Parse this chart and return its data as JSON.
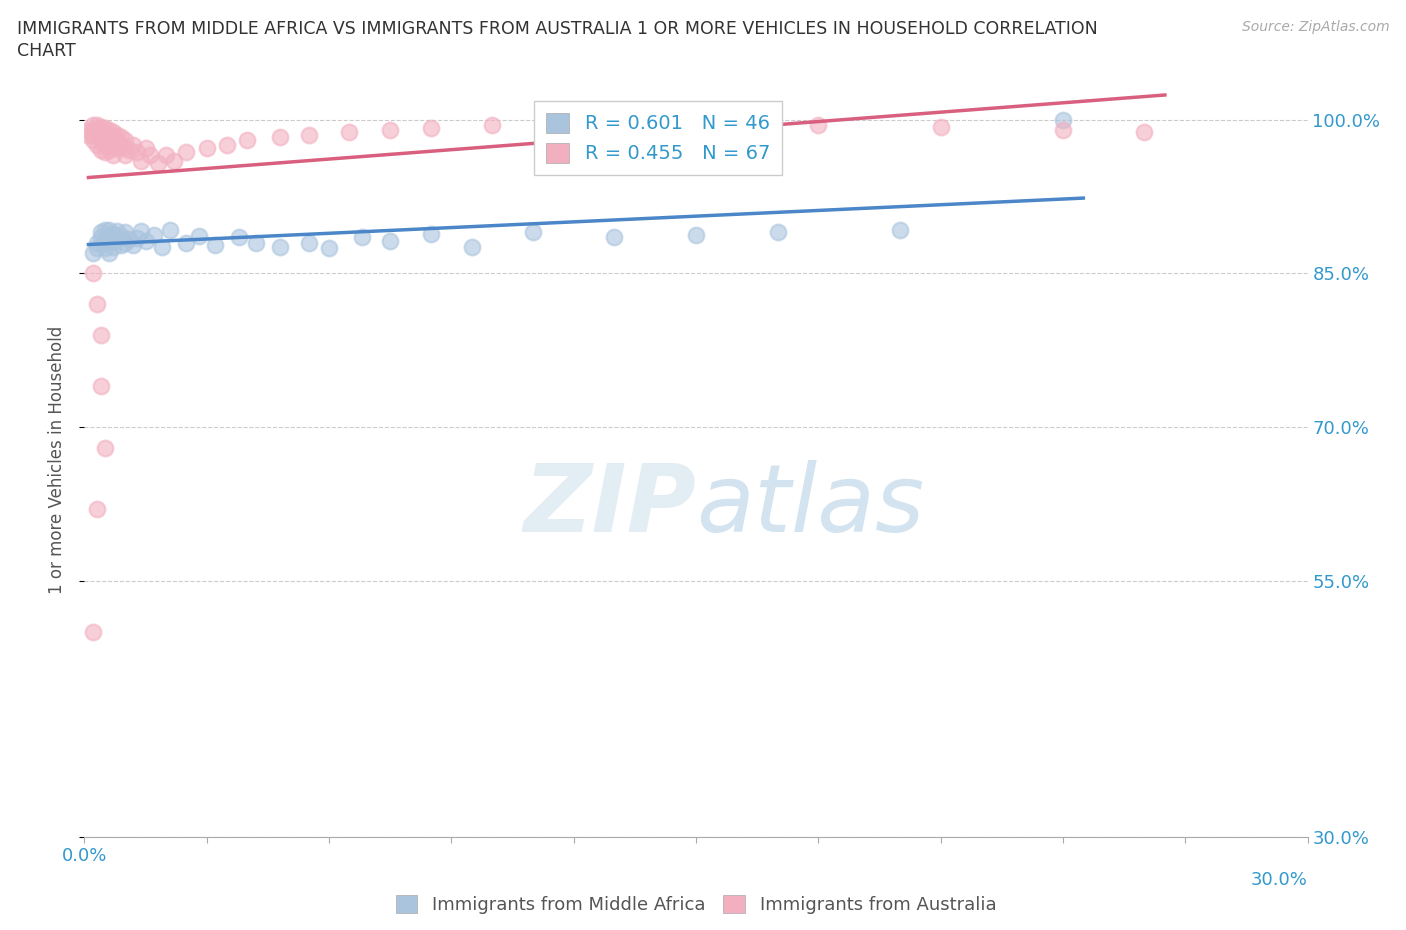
{
  "title_line1": "IMMIGRANTS FROM MIDDLE AFRICA VS IMMIGRANTS FROM AUSTRALIA 1 OR MORE VEHICLES IN HOUSEHOLD CORRELATION",
  "title_line2": "CHART",
  "source_text": "Source: ZipAtlas.com",
  "ylabel": "1 or more Vehicles in Household",
  "watermark_zip": "ZIP",
  "watermark_atlas": "atlas",
  "xlim": [
    0.0,
    0.3
  ],
  "ylim": [
    0.3,
    1.035
  ],
  "yticks": [
    0.3,
    0.55,
    0.7,
    0.85,
    1.0
  ],
  "ytick_labels": [
    "30.0%",
    "55.0%",
    "70.0%",
    "85.0%",
    "100.0%"
  ],
  "xtick_left_label": "0.0%",
  "xtick_right_label": "30.0%",
  "blue_R": 0.601,
  "blue_N": 46,
  "pink_R": 0.455,
  "pink_N": 67,
  "blue_color": "#aac4de",
  "pink_color": "#f2afc0",
  "blue_line_color": "#4a86c8",
  "pink_line_color": "#d95f7f",
  "legend_label_blue": "Immigrants from Middle Africa",
  "legend_label_pink": "Immigrants from Australia",
  "blue_x": [
    0.002,
    0.003,
    0.003,
    0.004,
    0.004,
    0.005,
    0.005,
    0.005,
    0.006,
    0.006,
    0.006,
    0.007,
    0.007,
    0.007,
    0.008,
    0.008,
    0.009,
    0.009,
    0.01,
    0.01,
    0.011,
    0.012,
    0.013,
    0.014,
    0.015,
    0.017,
    0.019,
    0.021,
    0.025,
    0.028,
    0.032,
    0.038,
    0.042,
    0.048,
    0.055,
    0.06,
    0.068,
    0.075,
    0.085,
    0.095,
    0.11,
    0.13,
    0.15,
    0.17,
    0.2,
    0.24
  ],
  "blue_y": [
    0.87,
    0.88,
    0.875,
    0.885,
    0.89,
    0.88,
    0.892,
    0.875,
    0.885,
    0.892,
    0.87,
    0.882,
    0.888,
    0.876,
    0.883,
    0.891,
    0.878,
    0.886,
    0.88,
    0.89,
    0.883,
    0.878,
    0.884,
    0.891,
    0.882,
    0.887,
    0.876,
    0.892,
    0.88,
    0.886,
    0.878,
    0.885,
    0.88,
    0.876,
    0.88,
    0.875,
    0.885,
    0.882,
    0.888,
    0.876,
    0.89,
    0.885,
    0.887,
    0.89,
    0.892,
    1.0
  ],
  "pink_x": [
    0.001,
    0.001,
    0.002,
    0.002,
    0.002,
    0.002,
    0.003,
    0.003,
    0.003,
    0.003,
    0.004,
    0.004,
    0.004,
    0.004,
    0.005,
    0.005,
    0.005,
    0.005,
    0.005,
    0.006,
    0.006,
    0.006,
    0.006,
    0.007,
    0.007,
    0.007,
    0.007,
    0.008,
    0.008,
    0.008,
    0.009,
    0.009,
    0.01,
    0.01,
    0.01,
    0.011,
    0.012,
    0.013,
    0.014,
    0.015,
    0.016,
    0.018,
    0.02,
    0.022,
    0.025,
    0.03,
    0.035,
    0.04,
    0.048,
    0.055,
    0.065,
    0.075,
    0.085,
    0.1,
    0.12,
    0.15,
    0.18,
    0.21,
    0.24,
    0.26,
    0.002,
    0.003,
    0.004,
    0.004,
    0.005,
    0.003,
    0.002
  ],
  "pink_y": [
    0.99,
    0.985,
    0.995,
    0.99,
    0.985,
    0.98,
    0.995,
    0.99,
    0.985,
    0.975,
    0.993,
    0.988,
    0.98,
    0.97,
    0.992,
    0.987,
    0.982,
    0.975,
    0.968,
    0.99,
    0.985,
    0.978,
    0.97,
    0.988,
    0.983,
    0.975,
    0.965,
    0.985,
    0.978,
    0.972,
    0.983,
    0.975,
    0.98,
    0.972,
    0.965,
    0.97,
    0.975,
    0.968,
    0.96,
    0.972,
    0.965,
    0.958,
    0.965,
    0.96,
    0.968,
    0.972,
    0.975,
    0.98,
    0.983,
    0.985,
    0.988,
    0.99,
    0.992,
    0.995,
    0.992,
    0.995,
    0.995,
    0.993,
    0.99,
    0.988,
    0.85,
    0.82,
    0.79,
    0.74,
    0.68,
    0.62,
    0.5
  ]
}
